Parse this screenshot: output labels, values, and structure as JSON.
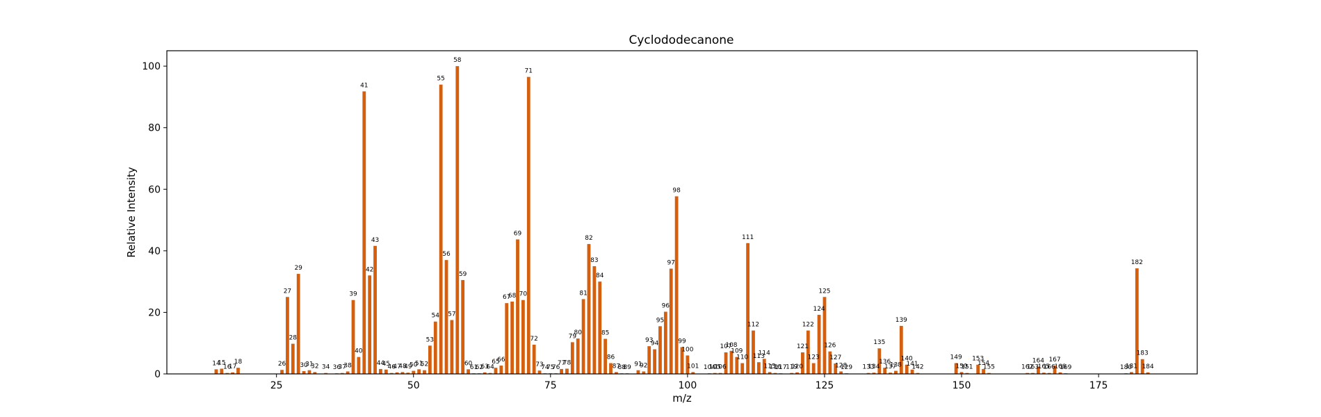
{
  "chart_data": {
    "type": "bar",
    "title": "Cyclododecanone",
    "xlabel": "m/z",
    "ylabel": "Relative Intensity",
    "xlim": [
      5,
      193
    ],
    "ylim": [
      0,
      105
    ],
    "xticks": [
      25,
      50,
      75,
      100,
      125,
      150,
      175
    ],
    "yticks": [
      0,
      20,
      40,
      60,
      80,
      100
    ],
    "bar_color": "#d35f0f",
    "grid": false,
    "legend": "none",
    "peaks": [
      {
        "mz": 14,
        "intensity": 1.5
      },
      {
        "mz": 15,
        "intensity": 1.7
      },
      {
        "mz": 16,
        "intensity": 0.3
      },
      {
        "mz": 17,
        "intensity": 0.5
      },
      {
        "mz": 18,
        "intensity": 2.0
      },
      {
        "mz": 26,
        "intensity": 1.3
      },
      {
        "mz": 27,
        "intensity": 25
      },
      {
        "mz": 28,
        "intensity": 9.8
      },
      {
        "mz": 29,
        "intensity": 32.5
      },
      {
        "mz": 30,
        "intensity": 0.9
      },
      {
        "mz": 31,
        "intensity": 1.2
      },
      {
        "mz": 32,
        "intensity": 0.6
      },
      {
        "mz": 34,
        "intensity": 0.3
      },
      {
        "mz": 36,
        "intensity": 0.2
      },
      {
        "mz": 37,
        "intensity": 0.3
      },
      {
        "mz": 38,
        "intensity": 0.8
      },
      {
        "mz": 39,
        "intensity": 24
      },
      {
        "mz": 40,
        "intensity": 5.5
      },
      {
        "mz": 41,
        "intensity": 91.8
      },
      {
        "mz": 42,
        "intensity": 32
      },
      {
        "mz": 43,
        "intensity": 41.6
      },
      {
        "mz": 44,
        "intensity": 1.6
      },
      {
        "mz": 45,
        "intensity": 1.4
      },
      {
        "mz": 46,
        "intensity": 0.3
      },
      {
        "mz": 47,
        "intensity": 0.5
      },
      {
        "mz": 48,
        "intensity": 0.6
      },
      {
        "mz": 49,
        "intensity": 0.4
      },
      {
        "mz": 50,
        "intensity": 1.0
      },
      {
        "mz": 51,
        "intensity": 1.5
      },
      {
        "mz": 52,
        "intensity": 1.2
      },
      {
        "mz": 53,
        "intensity": 9.2
      },
      {
        "mz": 54,
        "intensity": 17
      },
      {
        "mz": 55,
        "intensity": 94
      },
      {
        "mz": 56,
        "intensity": 37
      },
      {
        "mz": 57,
        "intensity": 17.5
      },
      {
        "mz": 58,
        "intensity": 100
      },
      {
        "mz": 59,
        "intensity": 30.5
      },
      {
        "mz": 60,
        "intensity": 1.5
      },
      {
        "mz": 61,
        "intensity": 0.2
      },
      {
        "mz": 62,
        "intensity": 0.2
      },
      {
        "mz": 63,
        "intensity": 0.5
      },
      {
        "mz": 64,
        "intensity": 0.3
      },
      {
        "mz": 65,
        "intensity": 2.0
      },
      {
        "mz": 66,
        "intensity": 2.7
      },
      {
        "mz": 67,
        "intensity": 23
      },
      {
        "mz": 68,
        "intensity": 23.5
      },
      {
        "mz": 69,
        "intensity": 43.7
      },
      {
        "mz": 70,
        "intensity": 24
      },
      {
        "mz": 71,
        "intensity": 96.5
      },
      {
        "mz": 72,
        "intensity": 9.5
      },
      {
        "mz": 73,
        "intensity": 1.1
      },
      {
        "mz": 74,
        "intensity": 0.2
      },
      {
        "mz": 75,
        "intensity": 0.2
      },
      {
        "mz": 76,
        "intensity": 0.2
      },
      {
        "mz": 77,
        "intensity": 1.6
      },
      {
        "mz": 78,
        "intensity": 1.7
      },
      {
        "mz": 79,
        "intensity": 10.3
      },
      {
        "mz": 80,
        "intensity": 11.5
      },
      {
        "mz": 81,
        "intensity": 24.3
      },
      {
        "mz": 82,
        "intensity": 42.2
      },
      {
        "mz": 83,
        "intensity": 35
      },
      {
        "mz": 84,
        "intensity": 30
      },
      {
        "mz": 85,
        "intensity": 11.4
      },
      {
        "mz": 86,
        "intensity": 3.5
      },
      {
        "mz": 87,
        "intensity": 0.6
      },
      {
        "mz": 88,
        "intensity": 0.2
      },
      {
        "mz": 89,
        "intensity": 0.2
      },
      {
        "mz": 91,
        "intensity": 1.2
      },
      {
        "mz": 92,
        "intensity": 0.8
      },
      {
        "mz": 93,
        "intensity": 9.0
      },
      {
        "mz": 94,
        "intensity": 8.0
      },
      {
        "mz": 95,
        "intensity": 15.5
      },
      {
        "mz": 96,
        "intensity": 20.2
      },
      {
        "mz": 97,
        "intensity": 34.2
      },
      {
        "mz": 98,
        "intensity": 57.7
      },
      {
        "mz": 99,
        "intensity": 8.7
      },
      {
        "mz": 100,
        "intensity": 6.0
      },
      {
        "mz": 101,
        "intensity": 0.6
      },
      {
        "mz": 104,
        "intensity": 0.2
      },
      {
        "mz": 105,
        "intensity": 0.3
      },
      {
        "mz": 106,
        "intensity": 0.3
      },
      {
        "mz": 107,
        "intensity": 7.0
      },
      {
        "mz": 108,
        "intensity": 7.5
      },
      {
        "mz": 109,
        "intensity": 5.5
      },
      {
        "mz": 110,
        "intensity": 3.5
      },
      {
        "mz": 111,
        "intensity": 42.5
      },
      {
        "mz": 112,
        "intensity": 14.1
      },
      {
        "mz": 113,
        "intensity": 3.8
      },
      {
        "mz": 114,
        "intensity": 4.9
      },
      {
        "mz": 115,
        "intensity": 0.6
      },
      {
        "mz": 116,
        "intensity": 0.3
      },
      {
        "mz": 117,
        "intensity": 0.2
      },
      {
        "mz": 119,
        "intensity": 0.3
      },
      {
        "mz": 120,
        "intensity": 0.5
      },
      {
        "mz": 121,
        "intensity": 7.0
      },
      {
        "mz": 122,
        "intensity": 14.1
      },
      {
        "mz": 123,
        "intensity": 3.5
      },
      {
        "mz": 124,
        "intensity": 19.2
      },
      {
        "mz": 125,
        "intensity": 25
      },
      {
        "mz": 126,
        "intensity": 7.3
      },
      {
        "mz": 127,
        "intensity": 3.4
      },
      {
        "mz": 128,
        "intensity": 0.8
      },
      {
        "mz": 129,
        "intensity": 0.2
      },
      {
        "mz": 133,
        "intensity": 0.3
      },
      {
        "mz": 134,
        "intensity": 0.4
      },
      {
        "mz": 135,
        "intensity": 8.3
      },
      {
        "mz": 136,
        "intensity": 2.0
      },
      {
        "mz": 137,
        "intensity": 0.4
      },
      {
        "mz": 138,
        "intensity": 1.0
      },
      {
        "mz": 139,
        "intensity": 15.6
      },
      {
        "mz": 140,
        "intensity": 3.0
      },
      {
        "mz": 141,
        "intensity": 1.4
      },
      {
        "mz": 142,
        "intensity": 0.3
      },
      {
        "mz": 149,
        "intensity": 3.5
      },
      {
        "mz": 150,
        "intensity": 0.6
      },
      {
        "mz": 151,
        "intensity": 0.3
      },
      {
        "mz": 153,
        "intensity": 3.0
      },
      {
        "mz": 154,
        "intensity": 1.6
      },
      {
        "mz": 155,
        "intensity": 0.3
      },
      {
        "mz": 162,
        "intensity": 0.3
      },
      {
        "mz": 163,
        "intensity": 0.3
      },
      {
        "mz": 164,
        "intensity": 2.4
      },
      {
        "mz": 165,
        "intensity": 0.4
      },
      {
        "mz": 166,
        "intensity": 0.3
      },
      {
        "mz": 167,
        "intensity": 2.7
      },
      {
        "mz": 168,
        "intensity": 0.5
      },
      {
        "mz": 169,
        "intensity": 0.2
      },
      {
        "mz": 180,
        "intensity": 0.2
      },
      {
        "mz": 181,
        "intensity": 0.6
      },
      {
        "mz": 182,
        "intensity": 34.3
      },
      {
        "mz": 183,
        "intensity": 4.8
      },
      {
        "mz": 184,
        "intensity": 0.5
      }
    ]
  }
}
